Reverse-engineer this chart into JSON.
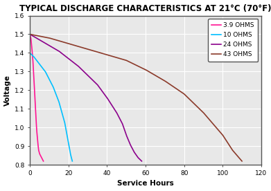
{
  "title": "TYPICAL DISCHARGE CHARACTERISTICS AT 21°C (70°F)",
  "xlabel": "Service Hours",
  "ylabel": "Voltage",
  "xlim": [
    0,
    120
  ],
  "ylim": [
    0.8,
    1.6
  ],
  "xticks": [
    0,
    20,
    40,
    60,
    80,
    100,
    120
  ],
  "yticks": [
    0.8,
    0.9,
    1.0,
    1.1,
    1.2,
    1.3,
    1.4,
    1.5,
    1.6
  ],
  "curves": [
    {
      "label": "3.9 OHMS",
      "color": "#FF1493",
      "x": [
        0,
        0.5,
        1.0,
        1.5,
        2.0,
        2.5,
        3.0,
        3.5,
        4.0,
        4.5,
        5.0,
        5.5,
        6.0,
        6.5,
        7.0
      ],
      "y": [
        1.5,
        1.48,
        1.43,
        1.37,
        1.28,
        1.18,
        1.08,
        0.99,
        0.93,
        0.88,
        0.86,
        0.85,
        0.84,
        0.83,
        0.82
      ]
    },
    {
      "label": "10 OHMS",
      "color": "#00BFFF",
      "x": [
        0,
        2,
        5,
        8,
        12,
        15,
        18,
        20,
        21,
        22
      ],
      "y": [
        1.4,
        1.38,
        1.34,
        1.3,
        1.22,
        1.14,
        1.03,
        0.92,
        0.86,
        0.82
      ]
    },
    {
      "label": "24 OHMS",
      "color": "#8B008B",
      "x": [
        0,
        5,
        10,
        15,
        20,
        25,
        30,
        35,
        40,
        45,
        48,
        50,
        52,
        54,
        56,
        58
      ],
      "y": [
        1.5,
        1.47,
        1.44,
        1.41,
        1.37,
        1.33,
        1.28,
        1.23,
        1.16,
        1.08,
        1.02,
        0.96,
        0.91,
        0.87,
        0.84,
        0.82
      ]
    },
    {
      "label": "43 OHMS",
      "color": "#8B3A2A",
      "x": [
        0,
        10,
        20,
        30,
        40,
        50,
        60,
        70,
        80,
        90,
        100,
        105,
        110
      ],
      "y": [
        1.5,
        1.48,
        1.45,
        1.42,
        1.39,
        1.36,
        1.31,
        1.25,
        1.18,
        1.08,
        0.96,
        0.88,
        0.82
      ]
    }
  ],
  "legend_fontsize": 6.5,
  "title_fontsize": 8.5,
  "axis_label_fontsize": 7.5,
  "tick_fontsize": 6.5,
  "plot_bg_color": "#E8E8E8",
  "fig_bg_color": "#FFFFFF",
  "grid_color": "#FFFFFF",
  "border_color": "#555555"
}
